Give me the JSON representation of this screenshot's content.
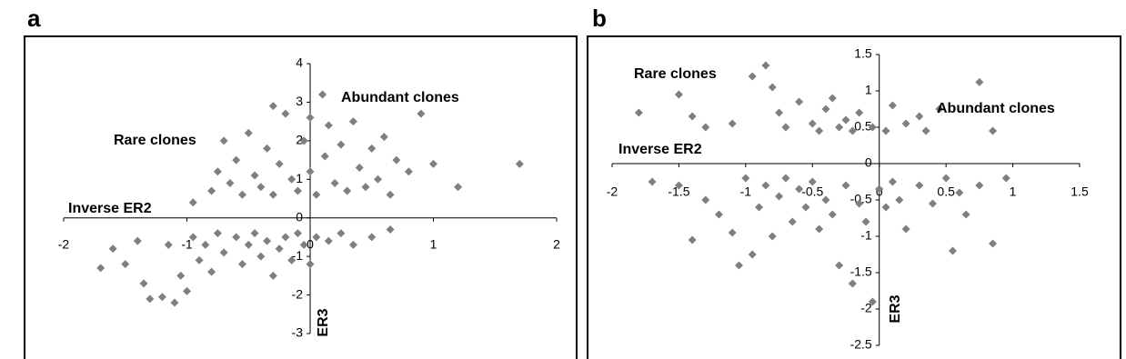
{
  "chart_data": [
    {
      "type": "scatter",
      "panel_label": "a",
      "x_label": "Inverse ER2",
      "y_label": "ER3",
      "annotations": [
        "Rare clones",
        "Abundant clones"
      ],
      "color": "#7f7f7f",
      "xlim": [
        -2,
        2
      ],
      "ylim": [
        -3,
        4
      ],
      "xticks": [
        -2,
        -1,
        0,
        1,
        2
      ],
      "yticks": [
        -3,
        -2,
        -1,
        0,
        1,
        2,
        3,
        4
      ],
      "x": [
        -1.7,
        -1.6,
        -1.5,
        -1.4,
        -1.35,
        -1.3,
        -1.2,
        -1.15,
        -1.1,
        -1.05,
        -1.0,
        -0.95,
        -0.9,
        -0.85,
        -0.8,
        -0.75,
        -0.7,
        -0.6,
        -0.55,
        -0.5,
        -0.45,
        -0.4,
        -0.35,
        -0.3,
        -0.25,
        -0.2,
        -0.15,
        -0.1,
        -0.05,
        0.0,
        0.05,
        0.15,
        0.25,
        0.35,
        0.5,
        0.65,
        -0.95,
        -0.8,
        -0.75,
        -0.7,
        -0.65,
        -0.6,
        -0.55,
        -0.5,
        -0.45,
        -0.4,
        -0.35,
        -0.3,
        -0.25,
        -0.2,
        -0.15,
        -0.1,
        -0.05,
        0.0,
        0.05,
        0.1,
        0.12,
        0.15,
        0.2,
        0.25,
        0.3,
        0.35,
        0.4,
        0.45,
        0.5,
        0.55,
        0.6,
        0.65,
        0.7,
        0.8,
        0.9,
        1.0,
        1.2,
        1.7,
        -0.3,
        0.0
      ],
      "y": [
        -1.3,
        -0.8,
        -1.2,
        -0.6,
        -1.7,
        -2.1,
        -2.05,
        -0.7,
        -2.2,
        -1.5,
        -1.9,
        -0.5,
        -1.1,
        -0.7,
        -1.4,
        -0.4,
        -0.9,
        -0.5,
        -1.2,
        -0.7,
        -0.4,
        -1.0,
        -0.6,
        -1.5,
        -0.8,
        -0.5,
        -1.1,
        -0.4,
        -0.7,
        -1.2,
        -0.5,
        -0.6,
        -0.4,
        -0.7,
        -0.5,
        -0.3,
        0.4,
        0.7,
        1.2,
        2.0,
        0.9,
        1.5,
        0.6,
        2.2,
        1.1,
        0.8,
        1.8,
        0.6,
        1.4,
        2.7,
        1.0,
        0.7,
        2.0,
        1.2,
        0.6,
        3.2,
        1.6,
        2.4,
        0.9,
        1.9,
        0.7,
        2.5,
        1.3,
        0.8,
        1.8,
        1.0,
        2.1,
        0.6,
        1.5,
        1.2,
        2.7,
        1.4,
        0.8,
        1.4,
        2.9,
        2.6
      ]
    },
    {
      "type": "scatter",
      "panel_label": "b",
      "x_label": "Inverse ER2",
      "y_label": "ER3",
      "annotations": [
        "Rare clones",
        "Abundant clones"
      ],
      "color": "#7f7f7f",
      "xlim": [
        -2,
        1.5
      ],
      "ylim": [
        -2.5,
        1.5
      ],
      "xticks": [
        -2,
        -1.5,
        -1,
        -0.5,
        0,
        0.5,
        1,
        1.5
      ],
      "yticks": [
        -2.5,
        -2,
        -1.5,
        -1,
        -0.5,
        0,
        0.5,
        1,
        1.5
      ],
      "x": [
        -1.8,
        -1.5,
        -1.4,
        -1.3,
        -1.1,
        -0.95,
        -0.85,
        -0.8,
        -0.75,
        -0.7,
        -0.6,
        -0.5,
        -0.45,
        -0.4,
        -0.35,
        -0.3,
        -0.25,
        -0.2,
        -0.15,
        -0.05,
        0.05,
        0.1,
        0.2,
        0.3,
        0.35,
        0.45,
        0.75,
        0.85,
        -1.7,
        -1.5,
        -1.4,
        -1.3,
        -1.2,
        -1.1,
        -1.05,
        -1.0,
        -0.95,
        -0.9,
        -0.85,
        -0.8,
        -0.75,
        -0.7,
        -0.65,
        -0.6,
        -0.55,
        -0.5,
        -0.45,
        -0.4,
        -0.35,
        -0.3,
        -0.25,
        -0.2,
        -0.15,
        -0.1,
        -0.05,
        0.0,
        0.05,
        0.1,
        0.15,
        0.2,
        0.3,
        0.4,
        0.5,
        0.55,
        0.6,
        0.65,
        0.75,
        0.85,
        0.95
      ],
      "y": [
        0.7,
        0.95,
        0.65,
        0.5,
        0.55,
        1.2,
        1.35,
        1.05,
        0.7,
        0.5,
        0.85,
        0.55,
        0.45,
        0.75,
        0.9,
        0.5,
        0.6,
        0.45,
        0.7,
        0.5,
        0.45,
        0.8,
        0.55,
        0.65,
        0.45,
        0.75,
        1.12,
        0.45,
        -0.25,
        -0.3,
        -1.05,
        -0.5,
        -0.7,
        -0.95,
        -1.4,
        -0.2,
        -1.25,
        -0.6,
        -0.3,
        -1.0,
        -0.45,
        -0.2,
        -0.8,
        -0.35,
        -0.6,
        -0.25,
        -0.9,
        -0.5,
        -0.7,
        -1.4,
        -0.3,
        -1.65,
        -0.55,
        -0.8,
        -1.9,
        -0.35,
        -0.6,
        -0.25,
        -0.5,
        -0.9,
        -0.3,
        -0.55,
        -0.2,
        -1.2,
        -0.4,
        -0.7,
        -0.3,
        -1.1,
        -0.2
      ]
    }
  ]
}
